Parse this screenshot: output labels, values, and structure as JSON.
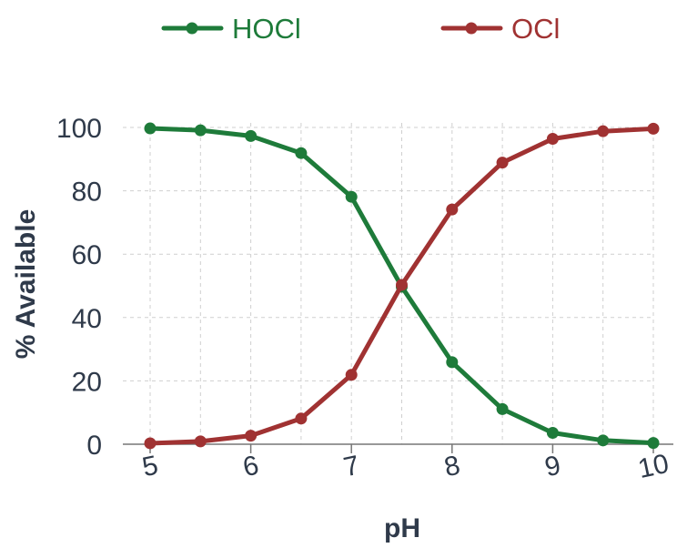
{
  "chart_data": {
    "type": "line",
    "xlabel": "pH",
    "ylabel": "% Available",
    "xlim": [
      5,
      10
    ],
    "ylim": [
      0,
      100
    ],
    "x_ticks": [
      "5",
      "6",
      "7",
      "8",
      "9",
      "10"
    ],
    "y_ticks": [
      "0",
      "20",
      "40",
      "60",
      "80",
      "100"
    ],
    "grid": true,
    "legend_position": "top",
    "x": [
      5,
      5.5,
      6,
      6.5,
      7,
      7.5,
      8,
      8.5,
      9,
      9.5,
      10
    ],
    "series": [
      {
        "name": "HOCl",
        "color": "#1e7b3a",
        "values": [
          99.7,
          99.1,
          97.3,
          91.9,
          78.1,
          49.7,
          25.9,
          11.1,
          3.6,
          1.2,
          0.4
        ]
      },
      {
        "name": "OCl",
        "color": "#a03232",
        "values": [
          0.3,
          0.9,
          2.7,
          8.1,
          21.9,
          50.3,
          74.1,
          88.9,
          96.4,
          98.8,
          99.6
        ]
      }
    ]
  }
}
